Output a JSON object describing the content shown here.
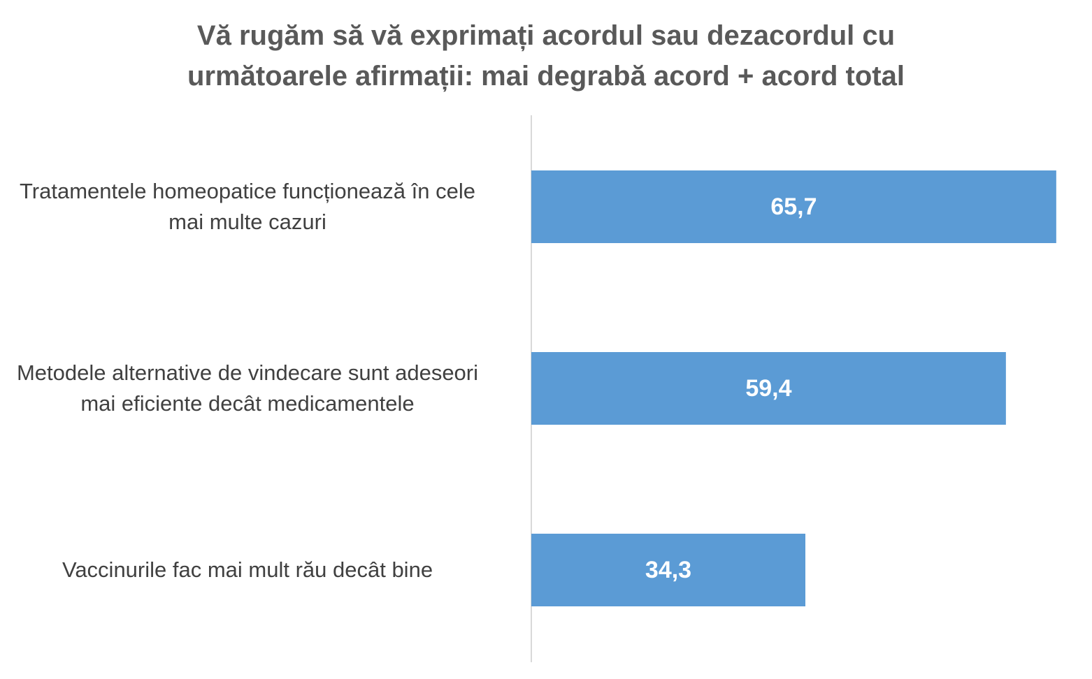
{
  "chart_data": {
    "type": "bar",
    "orientation": "horizontal",
    "title": [
      "Vă rugăm să vă exprimați acordul sau dezacordul cu",
      "următoarele afirmații: mai degrabă  acord + acord total"
    ],
    "categories": [
      "Tratamentele homeopatice funcționează în cele mai multe cazuri",
      "Metodele alternative de vindecare sunt adeseori mai eficiente decât medicamentele",
      "Vaccinurile fac mai mult rău decât bine"
    ],
    "category_lines": [
      [
        "Tratamentele homeopatice funcționează în cele",
        "mai multe cazuri"
      ],
      [
        "Metodele alternative de vindecare sunt adeseori",
        "mai eficiente decât medicamentele"
      ],
      [
        "Vaccinurile fac mai mult rău decât bine"
      ]
    ],
    "values": [
      65.7,
      59.4,
      34.3
    ],
    "data_labels": [
      "65,7",
      "59,4",
      "34,3"
    ],
    "xlim": [
      0,
      70
    ],
    "bar_color": "#5B9BD5",
    "axis_color": "#D9D9D9",
    "label_color": "#FFFFFF",
    "grid": false,
    "legend": "none"
  }
}
